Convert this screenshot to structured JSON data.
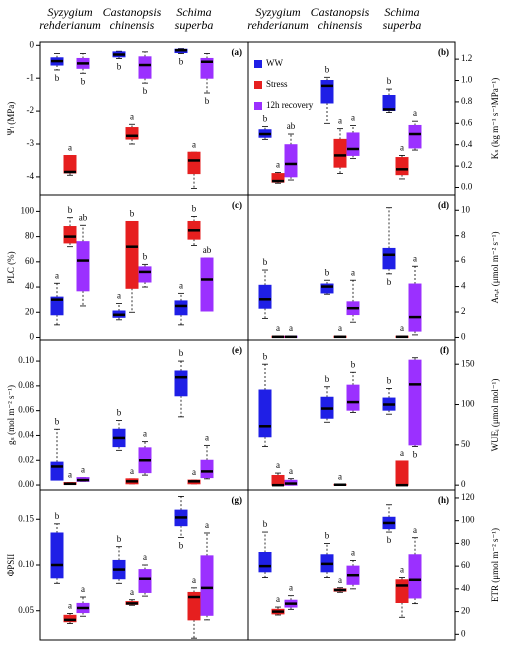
{
  "chart_data": [
    {
      "type": "box",
      "panel": "(a)",
      "ylabel": "Ψₗ (MPa)",
      "categories": [
        "Syzygium rehderianum",
        "Castanopsis chinensis",
        "Schima superba"
      ],
      "ylim": [
        -4.55,
        0.1
      ],
      "yticks": [
        0,
        -1,
        -2,
        -3,
        -4
      ],
      "series": [
        {
          "color": "#1f1fe6",
          "values": [
            [
              -0.75,
              -0.6,
              -0.48,
              -0.38,
              -0.25
            ],
            [
              -0.4,
              -0.35,
              -0.28,
              -0.2,
              -0.18
            ],
            [
              -0.25,
              -0.22,
              -0.15,
              -0.12,
              -0.1
            ]
          ],
          "letters": [
            "b",
            "b",
            "b"
          ]
        },
        {
          "color": "#e61f1f",
          "values": [
            [
              -3.95,
              -3.88,
              -3.85,
              -3.35,
              -3.35
            ],
            [
              -3.0,
              -2.85,
              -2.75,
              -2.5,
              -2.4
            ],
            [
              -4.35,
              -3.9,
              -3.5,
              -3.25,
              -3.25
            ]
          ],
          "letters": [
            "a",
            "a",
            "a"
          ]
        },
        {
          "color": "#9b30ff",
          "values": [
            [
              -0.85,
              -0.7,
              -0.55,
              -0.4,
              -0.25
            ],
            [
              -1.15,
              -1.0,
              -0.6,
              -0.35,
              -0.2
            ],
            [
              -1.45,
              -1.0,
              -0.5,
              -0.4,
              -0.25
            ]
          ],
          "letters": [
            "b",
            "b",
            "b"
          ]
        }
      ]
    },
    {
      "type": "box",
      "panel": "(b)",
      "ylabel": "Kₛ (kg m⁻¹ s⁻¹MPa⁻¹)",
      "categories": [
        "Syzygium rehderianum",
        "Castanopsis chinensis",
        "Schima superba"
      ],
      "ylim": [
        -0.07,
        1.36
      ],
      "yticks": [
        {
          "value": 0,
          "label": "0.0"
        },
        0.2,
        0.4,
        0.6,
        0.8,
        {
          "value": 1,
          "label": "1.0"
        },
        1.2
      ],
      "legend": "left",
      "series": [
        {
          "name": "WW",
          "color": "#1f1fe6",
          "values": [
            [
              0.45,
              0.47,
              0.5,
              0.54,
              0.57
            ],
            [
              0.6,
              0.79,
              0.95,
              1.0,
              1.03
            ],
            [
              0.7,
              0.72,
              0.73,
              0.86,
              0.92
            ]
          ],
          "letters": [
            "b",
            "b",
            "b"
          ]
        },
        {
          "name": "Stress",
          "color": "#e61f1f",
          "values": [
            [
              0.04,
              0.05,
              0.06,
              0.13,
              0.14
            ],
            [
              0.13,
              0.19,
              0.3,
              0.45,
              0.55
            ],
            [
              0.08,
              0.12,
              0.17,
              0.28,
              0.3
            ]
          ],
          "letters": [
            "a",
            "a",
            "a"
          ]
        },
        {
          "name": "12h recovery",
          "color": "#9b30ff",
          "values": [
            [
              0.07,
              0.1,
              0.22,
              0.4,
              0.5
            ],
            [
              0.27,
              0.3,
              0.36,
              0.51,
              0.58
            ],
            [
              0.35,
              0.37,
              0.5,
              0.58,
              0.62
            ]
          ],
          "letters": [
            "ab",
            "a",
            "a"
          ]
        }
      ]
    },
    {
      "type": "box",
      "panel": "(c)",
      "ylabel": "PLC (%)",
      "ylim": [
        -2,
        113
      ],
      "yticks": [
        0,
        20,
        40,
        60,
        80,
        100
      ],
      "series": [
        {
          "color": "#1f1fe6",
          "values": [
            [
              10,
              18,
              30,
              32,
              43
            ],
            [
              14,
              16,
              18,
              21,
              27
            ],
            [
              10,
              18,
              25,
              29,
              35
            ]
          ],
          "letters": [
            "a",
            "a",
            "a"
          ]
        },
        {
          "color": "#e61f1f",
          "values": [
            [
              72,
              75,
              80,
              88,
              95
            ],
            [
              20,
              39,
              72,
              92,
              92
            ],
            [
              73,
              78,
              85,
              92,
              96
            ]
          ],
          "letters": [
            "b",
            "b",
            "b"
          ]
        },
        {
          "color": "#9b30ff",
          "values": [
            [
              25,
              37,
              61,
              76,
              89
            ],
            [
              40,
              44,
              52,
              56,
              58
            ],
            [
              21,
              21,
              46,
              63,
              63
            ]
          ],
          "letters": [
            "ab",
            "b",
            "ab"
          ]
        }
      ]
    },
    {
      "type": "box",
      "panel": "(d)",
      "ylabel": "Aₙₑₜ (μmol m⁻² s⁻¹)",
      "ylim": [
        -0.2,
        11.2
      ],
      "yticks": [
        0,
        2,
        4,
        6,
        8,
        10
      ],
      "series": [
        {
          "color": "#1f1fe6",
          "values": [
            [
              1.5,
              2.3,
              3.0,
              4.1,
              5.3
            ],
            [
              3.4,
              3.5,
              4.0,
              4.2,
              4.5
            ],
            [
              5.0,
              5.4,
              6.5,
              7.0,
              10.2
            ]
          ],
          "letters": [
            "b",
            "b",
            "b"
          ]
        },
        {
          "color": "#e61f1f",
          "values": [
            [
              0,
              0,
              0.05,
              0.1,
              0.1
            ],
            [
              0,
              0,
              0.05,
              0.1,
              0.1
            ],
            [
              0,
              0,
              0.05,
              0.1,
              0.1
            ]
          ],
          "letters": [
            "a",
            "a",
            "a"
          ]
        },
        {
          "color": "#9b30ff",
          "values": [
            [
              0,
              0,
              0.05,
              0.1,
              0.1
            ],
            [
              1.2,
              1.8,
              2.3,
              2.8,
              4.5
            ],
            [
              0.2,
              0.5,
              1.6,
              4.2,
              5.6
            ]
          ],
          "letters": [
            "a",
            "a",
            "a"
          ]
        }
      ]
    },
    {
      "type": "box",
      "panel": "(e)",
      "ylabel": "gₛ (mol m⁻² s⁻¹)",
      "ylim": [
        -0.004,
        0.117
      ],
      "yticks": [
        {
          "value": 0,
          "label": "0.00"
        },
        0.02,
        0.04,
        0.06,
        0.08,
        {
          "value": 0.1,
          "label": "0.10"
        }
      ],
      "series": [
        {
          "color": "#1f1fe6",
          "values": [
            [
              0.004,
              0.004,
              0.015,
              0.0185,
              0.045
            ],
            [
              0.028,
              0.031,
              0.038,
              0.045,
              0.052
            ],
            [
              0.055,
              0.072,
              0.087,
              0.092,
              0.1
            ]
          ],
          "letters": [
            "b",
            "b",
            "b"
          ]
        },
        {
          "color": "#e61f1f",
          "values": [
            [
              0.0005,
              0.0005,
              0.001,
              0.002,
              0.002
            ],
            [
              0.001,
              0.001,
              0.003,
              0.005,
              0.005
            ],
            [
              0.001,
              0.001,
              0.003,
              0.004,
              0.004
            ]
          ],
          "letters": [
            "a",
            "a",
            "a"
          ]
        },
        {
          "color": "#9b30ff",
          "values": [
            [
              0.003,
              0.003,
              0.004,
              0.006,
              0.006
            ],
            [
              0.008,
              0.01,
              0.02,
              0.03,
              0.035
            ],
            [
              0.005,
              0.006,
              0.011,
              0.02,
              0.032
            ]
          ],
          "letters": [
            "a",
            "a",
            "a"
          ]
        }
      ]
    },
    {
      "type": "box",
      "panel": "(f)",
      "ylabel": "WUEᵢ (μmol mol⁻¹)",
      "ylim": [
        -6,
        180
      ],
      "yticks": [
        0,
        50,
        100,
        150
      ],
      "series": [
        {
          "color": "#1f1fe6",
          "values": [
            [
              48,
              60,
              73,
              118,
              150
            ],
            [
              78,
              83,
              95,
              109,
              122
            ],
            [
              88,
              93,
              100,
              108,
              120
            ]
          ],
          "letters": [
            "b",
            "b",
            "b"
          ]
        },
        {
          "color": "#e61f1f",
          "values": [
            [
              0,
              0,
              0,
              12,
              15
            ],
            [
              0,
              0,
              0.5,
              1,
              1
            ],
            [
              0,
              0,
              0,
              30,
              30
            ]
          ],
          "letters": [
            "a",
            "a",
            "a"
          ]
        },
        {
          "color": "#9b30ff",
          "values": [
            [
              0,
              0,
              2,
              6,
              8
            ],
            [
              90,
              93,
              103,
              124,
              140
            ],
            [
              48,
              50,
              125,
              155,
              158
            ]
          ],
          "letters": [
            "a",
            "b",
            "b"
          ]
        }
      ]
    },
    {
      "type": "box",
      "panel": "(g)",
      "ylabel": "ΦPSII",
      "ylim": [
        0.018,
        0.182
      ],
      "yticks": [
        0.05,
        {
          "value": 0.1,
          "label": "0.10"
        },
        0.15
      ],
      "series": [
        {
          "color": "#1f1fe6",
          "values": [
            [
              0.08,
              0.086,
              0.1,
              0.135,
              0.145
            ],
            [
              0.08,
              0.085,
              0.095,
              0.105,
              0.12
            ],
            [
              0.13,
              0.143,
              0.152,
              0.16,
              0.175
            ]
          ],
          "letters": [
            "b",
            "b",
            "b"
          ]
        },
        {
          "color": "#e61f1f",
          "values": [
            [
              0.036,
              0.038,
              0.04,
              0.045,
              0.047
            ],
            [
              0.056,
              0.057,
              0.058,
              0.06,
              0.062
            ],
            [
              0.02,
              0.04,
              0.065,
              0.07,
              0.075
            ]
          ],
          "letters": [
            "a",
            "a",
            "a"
          ]
        },
        {
          "color": "#9b30ff",
          "values": [
            [
              0.044,
              0.048,
              0.053,
              0.058,
              0.065
            ],
            [
              0.066,
              0.07,
              0.085,
              0.095,
              0.1
            ],
            [
              0.04,
              0.045,
              0.075,
              0.11,
              0.135
            ]
          ],
          "letters": [
            "a",
            "a",
            "a"
          ]
        }
      ]
    },
    {
      "type": "box",
      "panel": "(h)",
      "ylabel": "ETR (μmol m⁻² s⁻¹)",
      "ylim": [
        -5,
        127
      ],
      "yticks": [
        0,
        20,
        40,
        60,
        80,
        100,
        120
      ],
      "series": [
        {
          "color": "#1f1fe6",
          "values": [
            [
              50,
              55,
              60,
              72,
              90
            ],
            [
              50,
              55,
              62,
              70,
              80
            ],
            [
              90,
              93,
              98,
              103,
              114
            ]
          ],
          "letters": [
            "b",
            "b",
            "b"
          ]
        },
        {
          "color": "#e61f1f",
          "values": [
            [
              17,
              18,
              20,
              22,
              24
            ],
            [
              37,
              38,
              39,
              40,
              41
            ],
            [
              15,
              28,
              43,
              48,
              50
            ]
          ],
          "letters": [
            "a",
            "a",
            "a"
          ]
        },
        {
          "color": "#9b30ff",
          "values": [
            [
              22,
              24,
              27,
              30,
              34
            ],
            [
              40,
              44,
              52,
              60,
              65
            ],
            [
              27,
              32,
              48,
              70,
              85
            ]
          ],
          "letters": [
            "a",
            "a",
            "a"
          ]
        }
      ]
    }
  ]
}
